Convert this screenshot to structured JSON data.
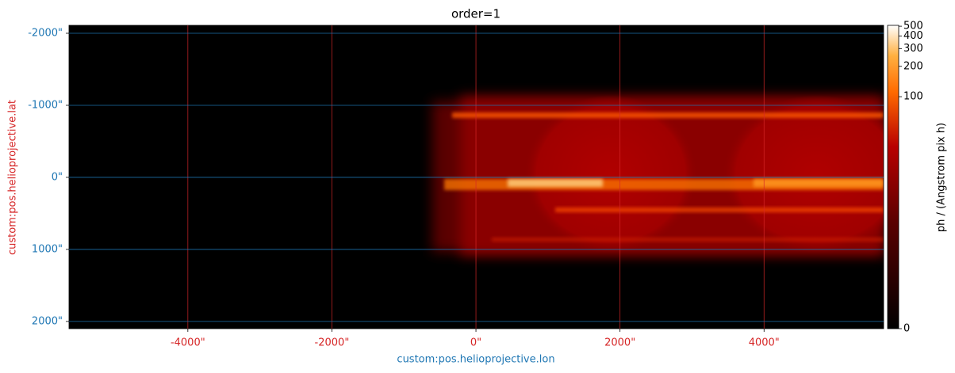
{
  "chart_data": {
    "type": "image",
    "title": "order=1",
    "x_label": "custom:pos.helioprojective.lon",
    "y_label": "custom:pos.helioprojective.lat",
    "xlim": [
      -5650,
      5660
    ],
    "ylim": [
      -2110,
      2100
    ],
    "y_inverted": true,
    "xticks": [
      {
        "value": -4000,
        "label": "-4000\""
      },
      {
        "value": -2000,
        "label": "-2000\""
      },
      {
        "value": 0,
        "label": "0\""
      },
      {
        "value": 2000,
        "label": "2000\""
      },
      {
        "value": 4000,
        "label": "4000\""
      }
    ],
    "yticks": [
      {
        "value": -2000,
        "label": "-2000\""
      },
      {
        "value": -1000,
        "label": "-1000\""
      },
      {
        "value": 0,
        "label": "0\""
      },
      {
        "value": 1000,
        "label": "1000\""
      },
      {
        "value": 2000,
        "label": "2000\""
      }
    ],
    "grid": true,
    "colorbar": {
      "label": "ph / (Angstrom pix h)",
      "scale": "asinh",
      "clim": [
        0,
        510
      ],
      "ticks": [
        0,
        100,
        200,
        300,
        400,
        500
      ]
    }
  }
}
